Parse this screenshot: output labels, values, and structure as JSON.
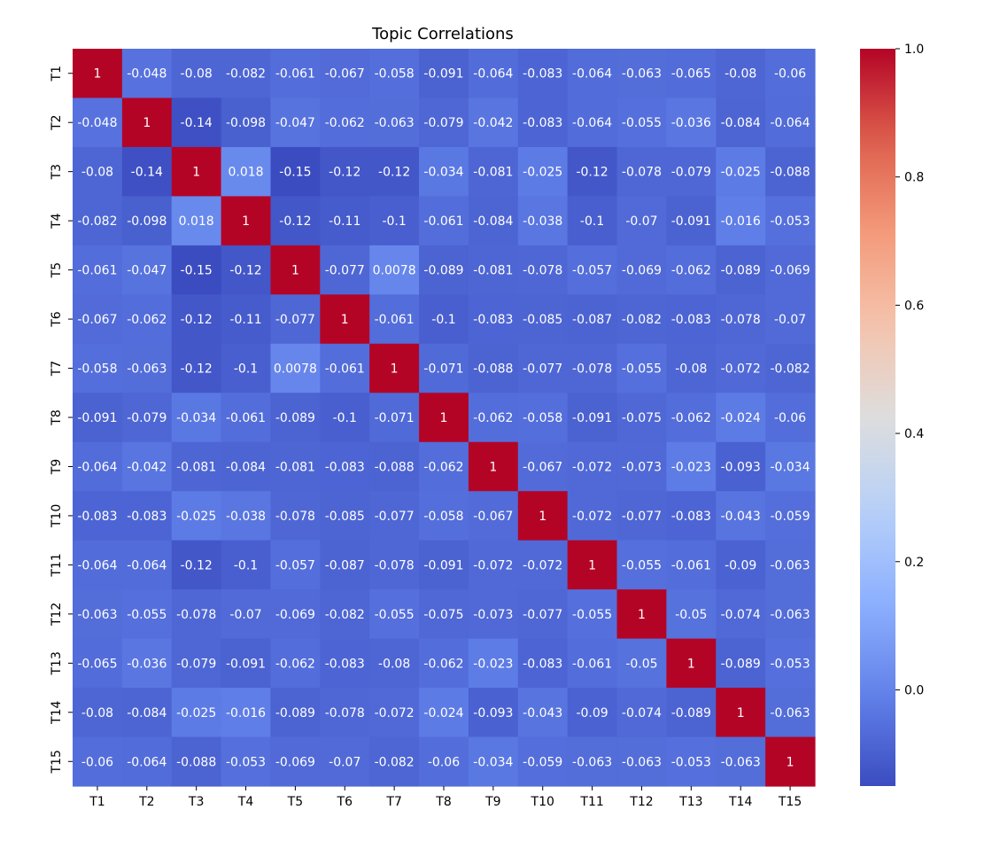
{
  "chart_data": {
    "type": "heatmap",
    "title": "Topic Correlations",
    "xlabel": "",
    "ylabel": "",
    "labels": [
      "T1",
      "T2",
      "T3",
      "T4",
      "T5",
      "T6",
      "T7",
      "T8",
      "T9",
      "T10",
      "T11",
      "T12",
      "T13",
      "T14",
      "T15"
    ],
    "cell_text": [
      [
        "1",
        "-0.048",
        "-0.08",
        "-0.082",
        "-0.061",
        "-0.067",
        "-0.058",
        "-0.091",
        "-0.064",
        "-0.083",
        "-0.064",
        "-0.063",
        "-0.065",
        "-0.08",
        "-0.06"
      ],
      [
        "-0.048",
        "1",
        "-0.14",
        "-0.098",
        "-0.047",
        "-0.062",
        "-0.063",
        "-0.079",
        "-0.042",
        "-0.083",
        "-0.064",
        "-0.055",
        "-0.036",
        "-0.084",
        "-0.064"
      ],
      [
        "-0.08",
        "-0.14",
        "1",
        "0.018",
        "-0.15",
        "-0.12",
        "-0.12",
        "-0.034",
        "-0.081",
        "-0.025",
        "-0.12",
        "-0.078",
        "-0.079",
        "-0.025",
        "-0.088"
      ],
      [
        "-0.082",
        "-0.098",
        "0.018",
        "1",
        "-0.12",
        "-0.11",
        "-0.1",
        "-0.061",
        "-0.084",
        "-0.038",
        "-0.1",
        "-0.07",
        "-0.091",
        "-0.016",
        "-0.053"
      ],
      [
        "-0.061",
        "-0.047",
        "-0.15",
        "-0.12",
        "1",
        "-0.077",
        "0.0078",
        "-0.089",
        "-0.081",
        "-0.078",
        "-0.057",
        "-0.069",
        "-0.062",
        "-0.089",
        "-0.069"
      ],
      [
        "-0.067",
        "-0.062",
        "-0.12",
        "-0.11",
        "-0.077",
        "1",
        "-0.061",
        "-0.1",
        "-0.083",
        "-0.085",
        "-0.087",
        "-0.082",
        "-0.083",
        "-0.078",
        "-0.07"
      ],
      [
        "-0.058",
        "-0.063",
        "-0.12",
        "-0.1",
        "0.0078",
        "-0.061",
        "1",
        "-0.071",
        "-0.088",
        "-0.077",
        "-0.078",
        "-0.055",
        "-0.08",
        "-0.072",
        "-0.082"
      ],
      [
        "-0.091",
        "-0.079",
        "-0.034",
        "-0.061",
        "-0.089",
        "-0.1",
        "-0.071",
        "1",
        "-0.062",
        "-0.058",
        "-0.091",
        "-0.075",
        "-0.062",
        "-0.024",
        "-0.06"
      ],
      [
        "-0.064",
        "-0.042",
        "-0.081",
        "-0.084",
        "-0.081",
        "-0.083",
        "-0.088",
        "-0.062",
        "1",
        "-0.067",
        "-0.072",
        "-0.073",
        "-0.023",
        "-0.093",
        "-0.034"
      ],
      [
        "-0.083",
        "-0.083",
        "-0.025",
        "-0.038",
        "-0.078",
        "-0.085",
        "-0.077",
        "-0.058",
        "-0.067",
        "1",
        "-0.072",
        "-0.077",
        "-0.083",
        "-0.043",
        "-0.059"
      ],
      [
        "-0.064",
        "-0.064",
        "-0.12",
        "-0.1",
        "-0.057",
        "-0.087",
        "-0.078",
        "-0.091",
        "-0.072",
        "-0.072",
        "1",
        "-0.055",
        "-0.061",
        "-0.09",
        "-0.063"
      ],
      [
        "-0.063",
        "-0.055",
        "-0.078",
        "-0.07",
        "-0.069",
        "-0.082",
        "-0.055",
        "-0.075",
        "-0.073",
        "-0.077",
        "-0.055",
        "1",
        "-0.05",
        "-0.074",
        "-0.063"
      ],
      [
        "-0.065",
        "-0.036",
        "-0.079",
        "-0.091",
        "-0.062",
        "-0.083",
        "-0.08",
        "-0.062",
        "-0.023",
        "-0.083",
        "-0.061",
        "-0.05",
        "1",
        "-0.089",
        "-0.053"
      ],
      [
        "-0.08",
        "-0.084",
        "-0.025",
        "-0.016",
        "-0.089",
        "-0.078",
        "-0.072",
        "-0.024",
        "-0.093",
        "-0.043",
        "-0.09",
        "-0.074",
        "-0.089",
        "1",
        "-0.063"
      ],
      [
        "-0.06",
        "-0.064",
        "-0.088",
        "-0.053",
        "-0.069",
        "-0.07",
        "-0.082",
        "-0.06",
        "-0.034",
        "-0.059",
        "-0.063",
        "-0.063",
        "-0.053",
        "-0.063",
        "1"
      ]
    ],
    "colormap": "coolwarm",
    "vmin": -0.15,
    "vmax": 1.0,
    "colorbar": {
      "ticks": [
        0.0,
        0.2,
        0.4,
        0.6,
        0.8,
        1.0
      ],
      "tick_labels": [
        "0.0",
        "0.2",
        "0.4",
        "0.6",
        "0.8",
        "1.0"
      ]
    }
  }
}
